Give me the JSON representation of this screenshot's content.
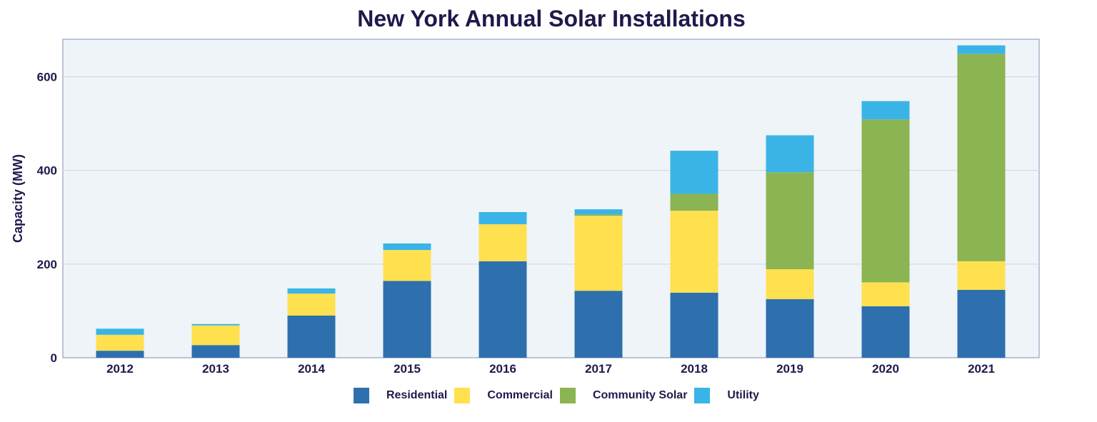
{
  "chart_data": {
    "type": "bar",
    "stacked": true,
    "title": "New York Annual Solar Installations",
    "xlabel": "",
    "ylabel": "Capacity (MW)",
    "ylim": [
      0,
      680
    ],
    "yticks": [
      0,
      200,
      400,
      600
    ],
    "grid": true,
    "legend_position": "bottom",
    "categories": [
      "2012",
      "2013",
      "2014",
      "2015",
      "2016",
      "2017",
      "2018",
      "2019",
      "2020",
      "2021"
    ],
    "series": [
      {
        "name": "Residential",
        "color": "#2e70ae",
        "values": [
          15,
          27,
          90,
          164,
          206,
          143,
          139,
          125,
          110,
          145
        ]
      },
      {
        "name": "Commercial",
        "color": "#ffe04f",
        "values": [
          34,
          42,
          47,
          66,
          79,
          160,
          175,
          64,
          51,
          61
        ]
      },
      {
        "name": "Community Solar",
        "color": "#8bb452",
        "values": [
          0,
          0,
          0,
          0,
          0,
          3,
          36,
          207,
          348,
          443
        ]
      },
      {
        "name": "Utility",
        "color": "#3ab4e6",
        "values": [
          13,
          3,
          11,
          14,
          26,
          11,
          92,
          79,
          39,
          18
        ]
      }
    ]
  }
}
